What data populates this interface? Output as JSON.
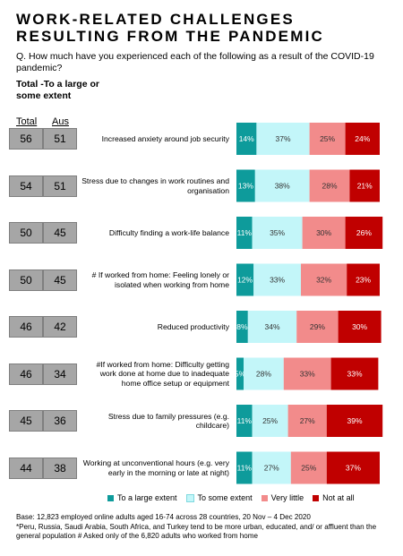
{
  "title": "WORK-RELATED CHALLENGES\nRESULTING FROM THE PANDEMIC",
  "question": "Q. How much have you experienced each of the following as a result of the COVID-19 pandemic?",
  "subheading": "Total -To a large or some extent",
  "columns": {
    "total": "Total",
    "aus": "Aus"
  },
  "colors": {
    "large": "#0e9b9b",
    "some": "#c3f6f9",
    "little": "#f28b8b",
    "notall": "#c00000",
    "score_cell": "#a6a6a6"
  },
  "legend": [
    {
      "label": "To a large extent",
      "color": "#0e9b9b"
    },
    {
      "label": "To some extent",
      "color": "#c3f6f9"
    },
    {
      "label": "Very little",
      "color": "#f28b8b"
    },
    {
      "label": "Not at all",
      "color": "#c00000"
    }
  ],
  "footnote": "Base: 12,823 employed online adults aged 16-74 across 28 countries, 20 Nov – 4 Dec 2020\n*Peru, Russia, Saudi Arabia, South Africa, and Turkey tend to be more urban, educated, and/ or affluent than the general population # Asked only of the 6,820 adults who worked from home",
  "chart_data": {
    "type": "bar",
    "stacked": true,
    "orientation": "horizontal",
    "xlim": [
      0,
      100
    ],
    "categories": [
      "Increased anxiety around job security",
      "Stress due to changes in work routines and organisation",
      "Difficulty finding a work-life balance",
      "# If worked from home: Feeling lonely or isolated when working from home",
      "Reduced productivity",
      "#If worked from home: Difficulty getting work done at home due to inadequate home office setup or equipment",
      "Stress due to family pressures (e.g. childcare)",
      "Working at unconventional hours (e.g. very early in the morning or late at night)"
    ],
    "series": [
      {
        "name": "To a large extent",
        "values": [
          14,
          13,
          11,
          12,
          8,
          5,
          11,
          11
        ]
      },
      {
        "name": "To some extent",
        "values": [
          37,
          38,
          35,
          33,
          34,
          28,
          25,
          27
        ]
      },
      {
        "name": "Very little",
        "values": [
          25,
          28,
          30,
          32,
          29,
          33,
          27,
          25
        ]
      },
      {
        "name": "Not at all",
        "values": [
          24,
          21,
          26,
          23,
          30,
          33,
          39,
          37
        ]
      }
    ],
    "value_labels": [
      [
        "14%",
        "37%",
        "25%",
        "24%"
      ],
      [
        "13%",
        "38%",
        "28%",
        "21%"
      ],
      [
        "11%",
        "35%",
        "30%",
        "26%"
      ],
      [
        "12%",
        "33%",
        "32%",
        "23%"
      ],
      [
        "8%",
        "34%",
        "29%",
        "30%"
      ],
      [
        "5%",
        "28%",
        "33%",
        "33%"
      ],
      [
        "11%",
        "25%",
        "27%",
        "39%"
      ],
      [
        "11%",
        "27%",
        "25%",
        "37%"
      ]
    ],
    "total": [
      56,
      54,
      50,
      50,
      46,
      46,
      45,
      44
    ],
    "aus": [
      51,
      51,
      45,
      45,
      42,
      34,
      36,
      38
    ]
  }
}
